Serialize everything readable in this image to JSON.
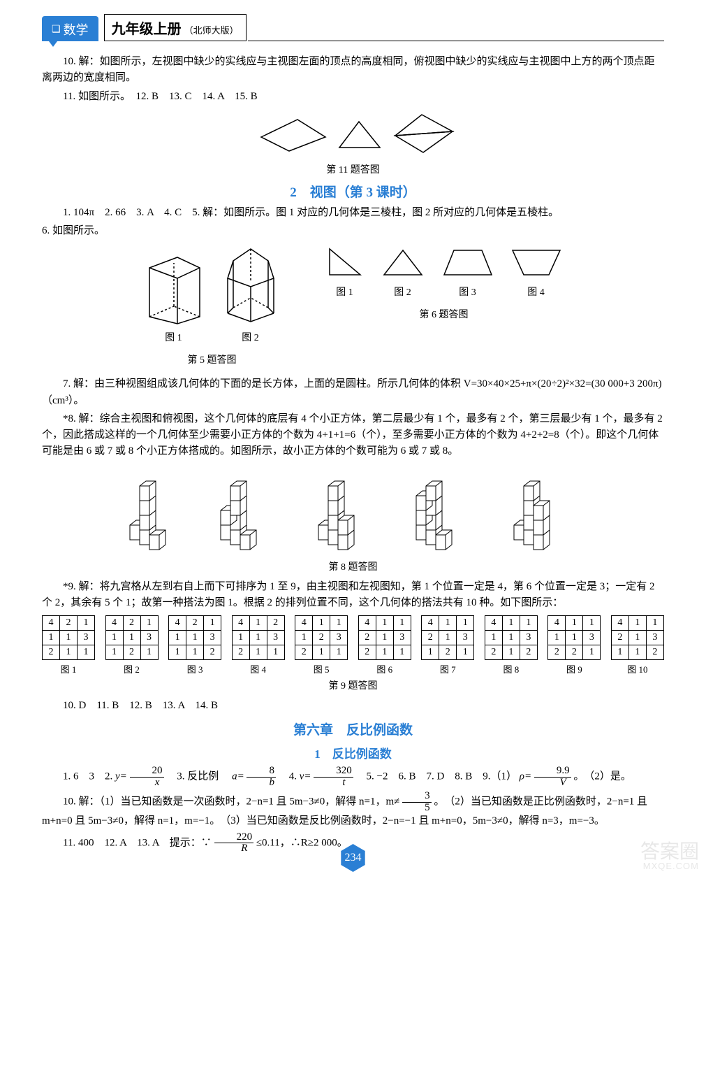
{
  "header": {
    "subject": "数学",
    "grade": "九年级上册",
    "edition": "（北师大版）"
  },
  "p10": "10. 解：如图所示，左视图中缺少的实线应与主视图左面的顶点的高度相同，俯视图中缺少的实线应与主视图中上方的两个顶点距离两边的宽度相同。",
  "p11": "11. 如图所示。　12. B　13. C　14. A　15. B",
  "fig11_caption": "第 11 题答图",
  "section2": "2　视图（第 3 课时）",
  "s2_p1_a": "1. 104π　2. 66　3. A　4. C　5. 解：如图所示。图 1 对应的几何体是三棱柱，图 2 所对应的几何体是五棱柱。",
  "s2_p1_b": "6. 如图所示。",
  "fig5_labels": {
    "a": "图 1",
    "b": "图 2",
    "cap": "第 5 题答图"
  },
  "fig6_labels": {
    "a": "图 1",
    "b": "图 2",
    "c": "图 3",
    "d": "图 4",
    "cap": "第 6 题答图"
  },
  "s2_p7": "7. 解：由三种视图组成该几何体的下面的是长方体，上面的是圆柱。所示几何体的体积 V=30×40×25+π×(20÷2)²×32=(30 000+3 200π)（cm³）。",
  "s2_p8": "*8. 解：综合主视图和俯视图，这个几何体的底层有 4 个小正方体，第二层最少有 1 个，最多有 2 个，第三层最少有 1 个，最多有 2 个，因此搭成这样的一个几何体至少需要小正方体的个数为 4+1+1=6（个），至多需要小正方体的个数为 4+2+2=8（个）。即这个几何体可能是由 6 或 7 或 8 个小正方体搭成的。如图所示，故小正方体的个数可能为 6 或 7 或 8。",
  "fig8_caption": "第 8 题答图",
  "s2_p9": "*9. 解：将九宫格从左到右自上而下可排序为 1 至 9，由主视图和左视图知，第 1 个位置一定是 4，第 6 个位置一定是 3；一定有 2 个 2，其余有 5 个 1；故第一种搭法为图 1。根据 2 的排列位置不同，这个几何体的搭法共有 10 种。如下图所示：",
  "grids": [
    [
      [
        4,
        2,
        1
      ],
      [
        1,
        1,
        3
      ],
      [
        2,
        1,
        1
      ]
    ],
    [
      [
        4,
        2,
        1
      ],
      [
        1,
        1,
        3
      ],
      [
        1,
        2,
        1
      ]
    ],
    [
      [
        4,
        2,
        1
      ],
      [
        1,
        1,
        3
      ],
      [
        1,
        1,
        2
      ]
    ],
    [
      [
        4,
        1,
        2
      ],
      [
        1,
        1,
        3
      ],
      [
        2,
        1,
        1
      ]
    ],
    [
      [
        4,
        1,
        1
      ],
      [
        1,
        2,
        3
      ],
      [
        2,
        1,
        1
      ]
    ],
    [
      [
        4,
        1,
        1
      ],
      [
        2,
        1,
        3
      ],
      [
        2,
        1,
        1
      ]
    ],
    [
      [
        4,
        1,
        1
      ],
      [
        2,
        1,
        3
      ],
      [
        1,
        2,
        1
      ]
    ],
    [
      [
        4,
        1,
        1
      ],
      [
        1,
        1,
        3
      ],
      [
        2,
        1,
        2
      ]
    ],
    [
      [
        4,
        1,
        1
      ],
      [
        1,
        1,
        3
      ],
      [
        2,
        2,
        1
      ]
    ],
    [
      [
        4,
        1,
        1
      ],
      [
        2,
        1,
        3
      ],
      [
        1,
        1,
        2
      ]
    ]
  ],
  "grid_labels": [
    "图 1",
    "图 2",
    "图 3",
    "图 4",
    "图 5",
    "图 6",
    "图 7",
    "图 8",
    "图 9",
    "图 10"
  ],
  "fig9_caption": "第 9 题答图",
  "s2_p10": "10. D　11. B　12. B　13. A　14. B",
  "ch6_title": "第六章　反比例函数",
  "ch6_sub": "1　反比例函数",
  "ch6_l1_a": "1. 6　3　2. ",
  "ch6_l1_y": "y=",
  "ch6_frac_20x": {
    "num": "20",
    "den": "x"
  },
  "ch6_l1_b": "　3. 反比例　",
  "ch6_l1_a2": "a=",
  "ch6_frac_8b": {
    "num": "8",
    "den": "b"
  },
  "ch6_l1_c": "　4. ",
  "ch6_l1_v": "v=",
  "ch6_frac_320t": {
    "num": "320",
    "den": "t"
  },
  "ch6_l1_d": "　5. −2　6. B　7. D　8. B　9.（1）",
  "ch6_l1_rho": "ρ=",
  "ch6_frac_99V": {
    "num": "9.9",
    "den": "V"
  },
  "ch6_l1_e": "。　（2）是。",
  "ch6_p10_a": "10. 解：（1）当已知函数是一次函数时，2−n=1 且 5m−3≠0，解得 n=1，m≠",
  "ch6_frac_35": {
    "num": "3",
    "den": "5"
  },
  "ch6_p10_b": "。　（2）当已知函数是正比例函数时，2−n=1 且 m+n=0 且 5m−3≠0，解得 n=1，m=−1。　（3）当已知函数是反比例函数时，2−n=−1 且 m+n=0，5m−3≠0，解得 n=3，m=−3。",
  "ch6_p11_a": "11. 400　12. A　13. A　提示：∵",
  "ch6_frac_220R": {
    "num": "220",
    "den": "R"
  },
  "ch6_p11_b": "≤0.11，∴R≥2 000。",
  "page_number": "234",
  "watermark": {
    "main": "答案圈",
    "sub": "MXQE.COM"
  }
}
